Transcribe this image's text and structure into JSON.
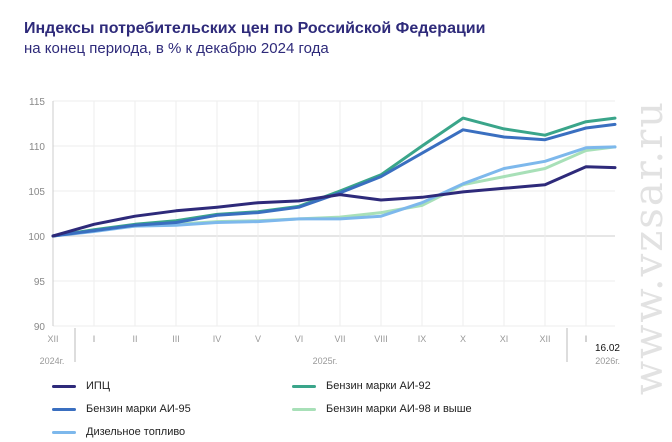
{
  "header": {
    "title": "Индексы потребительских цен по Российской Федерации",
    "subtitle": "на конец периода, в % к декабрю 2024 года"
  },
  "watermark": "www.vzsar.ru",
  "chart_data": {
    "type": "line",
    "title": "Индексы потребительских цен по Российской Федерации",
    "subtitle": "на конец периода, в % к декабрю 2024 года",
    "categories": [
      "XII",
      "I",
      "II",
      "III",
      "IV",
      "V",
      "VI",
      "VII",
      "VIII",
      "IX",
      "X",
      "XI",
      "XII",
      "I",
      "16.02"
    ],
    "year_labels": [
      "2024г.",
      "2025г.",
      "2026г."
    ],
    "ylim": [
      90,
      115
    ],
    "yticks": [
      90,
      95,
      100,
      105,
      110,
      115
    ],
    "grid": true,
    "legend_placement": "bottom",
    "series": [
      {
        "name": "ИПЦ",
        "color": "#2e2a7a",
        "values": [
          100,
          101.3,
          102.2,
          102.8,
          103.2,
          103.7,
          103.9,
          104.6,
          104.0,
          104.3,
          104.9,
          105.3,
          105.7,
          107.7,
          107.6
        ]
      },
      {
        "name": "Бензин марки АИ-92",
        "color": "#3aa58a",
        "values": [
          100,
          100.7,
          101.3,
          101.7,
          102.4,
          102.7,
          103.3,
          105.0,
          106.8,
          110.0,
          113.1,
          111.9,
          111.2,
          112.7,
          113.1
        ]
      },
      {
        "name": "Бензин марки АИ-95",
        "color": "#3a6fc0",
        "values": [
          100,
          100.6,
          101.2,
          101.5,
          102.3,
          102.6,
          103.2,
          104.8,
          106.6,
          109.2,
          111.8,
          111.0,
          110.7,
          112.0,
          112.4
        ]
      },
      {
        "name": "Бензин марки АИ-98 и выше",
        "color": "#a8e0b8",
        "values": [
          100,
          100.6,
          101.1,
          101.3,
          101.6,
          101.7,
          101.9,
          102.1,
          102.6,
          103.4,
          105.7,
          106.6,
          107.5,
          109.5,
          109.9
        ]
      },
      {
        "name": "Дизельное топливо",
        "color": "#7db8ec",
        "values": [
          100,
          100.5,
          101.1,
          101.2,
          101.5,
          101.6,
          101.9,
          101.9,
          102.2,
          103.7,
          105.8,
          107.5,
          108.3,
          109.8,
          109.9
        ]
      }
    ]
  }
}
